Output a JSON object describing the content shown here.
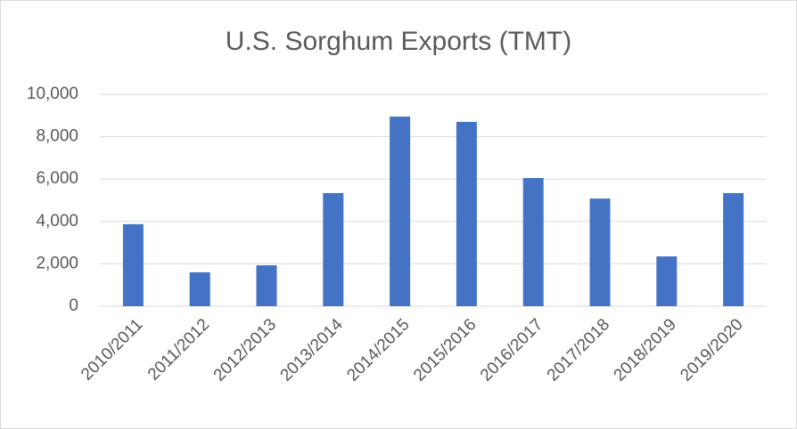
{
  "chart_data": {
    "type": "bar",
    "title": "U.S. Sorghum Exports (TMT)",
    "categories": [
      "2010/2011",
      "2011/2012",
      "2012/2013",
      "2013/2014",
      "2014/2015",
      "2015/2016",
      "2016/2017",
      "2017/2018",
      "2018/2019",
      "2019/2020"
    ],
    "values": [
      3870,
      1600,
      1930,
      5340,
      8950,
      8700,
      6050,
      5080,
      2350,
      5340
    ],
    "color": "#4472c4",
    "ylim": [
      0,
      10000
    ],
    "yticks": [
      0,
      {
        "value": 2000,
        "label": "2,000"
      },
      {
        "value": 4000,
        "label": "4,000"
      },
      {
        "value": 6000,
        "label": "6,000"
      },
      {
        "value": 8000,
        "label": "8,000"
      },
      {
        "value": 10000,
        "label": "10,000"
      }
    ],
    "grid": true
  }
}
